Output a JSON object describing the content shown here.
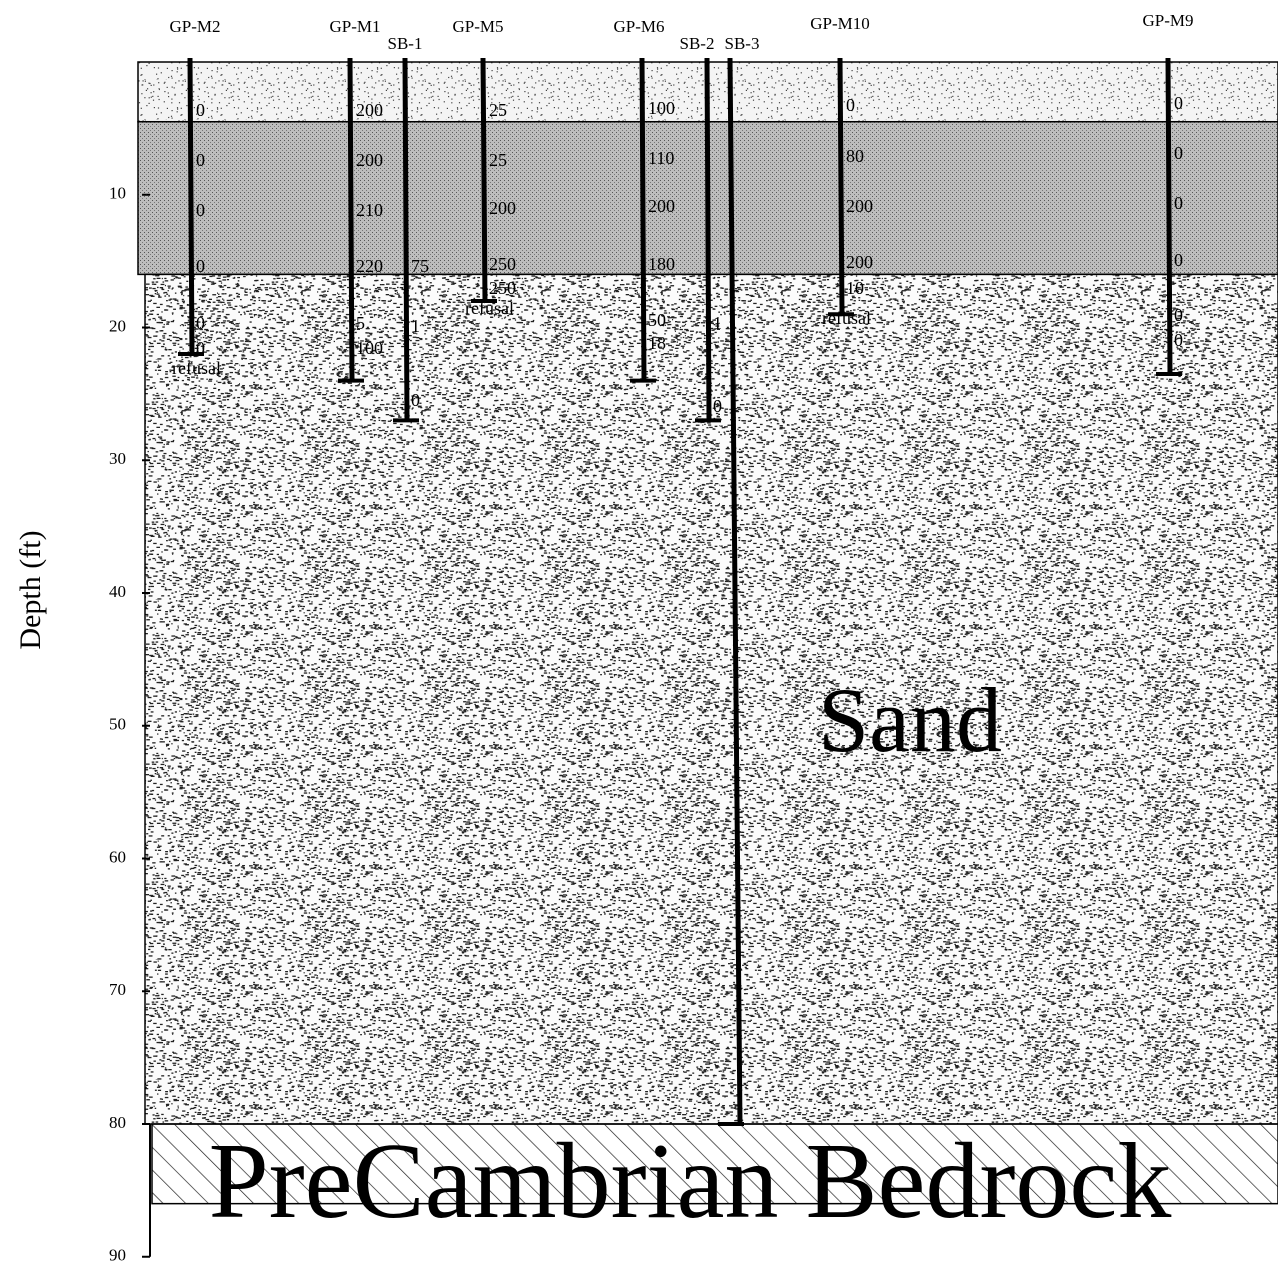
{
  "axis": {
    "label": "Depth (ft)",
    "ylim": [
      0,
      90
    ],
    "yticks": [
      10,
      20,
      30,
      40,
      50,
      60,
      70,
      80,
      90
    ]
  },
  "layers": [
    {
      "top": 0,
      "bottom": 4.5
    },
    {
      "top": 4.5,
      "bottom": 16
    },
    {
      "top": 16,
      "bottom": 80,
      "label": "Sand"
    },
    {
      "top": 80,
      "bottom": 86,
      "label": "PreCambrian Bedrock"
    }
  ],
  "borings": [
    {
      "name": "GP-M2",
      "depth": 22,
      "readings": [
        "0",
        "0",
        "0",
        "0",
        "0",
        "0",
        "refusal"
      ]
    },
    {
      "name": "GP-M1",
      "depth": 24,
      "readings": [
        "200",
        "200",
        "210",
        "220",
        "5",
        "100"
      ]
    },
    {
      "name": "SB-1",
      "depth": 27,
      "readings": [
        "75",
        "1",
        "0"
      ]
    },
    {
      "name": "GP-M5",
      "depth": 18,
      "readings": [
        "25",
        "25",
        "200",
        "250",
        "250",
        "refusal"
      ]
    },
    {
      "name": "GP-M6",
      "depth": 24,
      "readings": [
        "100",
        "110",
        "200",
        "180",
        "50",
        "18"
      ]
    },
    {
      "name": "SB-2",
      "depth": 27,
      "readings": [
        "1",
        "0"
      ]
    },
    {
      "name": "SB-3",
      "depth": 80,
      "readings": []
    },
    {
      "name": "GP-M10",
      "depth": 19,
      "readings": [
        "0",
        "80",
        "200",
        "200",
        "10",
        "refusal"
      ]
    },
    {
      "name": "GP-M9",
      "depth": 23.5,
      "readings": [
        "0",
        "0",
        "0",
        "0",
        "0",
        "0"
      ]
    }
  ]
}
